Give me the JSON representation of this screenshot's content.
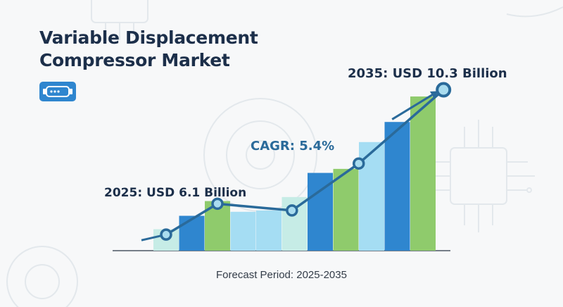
{
  "title_lines": [
    "Variable Displacement",
    "Compressor Market"
  ],
  "footer": "Forecast Period: 2025-2035",
  "icon": "compressor-icon",
  "colors": {
    "title": "#1c2f4a",
    "trend_line": "#2a6a9a",
    "marker_fill": "#a9dcef",
    "bar_light_teal": "#c6ece6",
    "bar_blue": "#2f86cf",
    "bar_green": "#8fcb6c",
    "bar_light_blue": "#a5ddf3",
    "icon_bg": "#2f86cf"
  },
  "chart_data": {
    "type": "bar",
    "title": "",
    "xlabel": "",
    "ylabel": "",
    "bars": [
      {
        "value": 1.6,
        "color": "#c6ece6"
      },
      {
        "value": 2.6,
        "color": "#2f86cf"
      },
      {
        "value": 3.7,
        "color": "#8fcb6c"
      },
      {
        "value": 2.9,
        "color": "#a5ddf3"
      },
      {
        "value": 3.0,
        "color": "#a5ddf3"
      },
      {
        "value": 4.0,
        "color": "#c6ece6"
      },
      {
        "value": 5.8,
        "color": "#2f86cf"
      },
      {
        "value": 6.1,
        "color": "#8fcb6c"
      },
      {
        "value": 8.1,
        "color": "#a5ddf3"
      },
      {
        "value": 9.6,
        "color": "#2f86cf"
      },
      {
        "value": 11.5,
        "color": "#8fcb6c"
      }
    ],
    "trend_line": {
      "points": [
        {
          "x": 0,
          "y": 1.2,
          "marker": true
        },
        {
          "x": 2,
          "y": 3.5,
          "marker": true
        },
        {
          "x": 4.9,
          "y": 3.0,
          "marker": true
        },
        {
          "x": 7.5,
          "y": 6.5,
          "marker": true
        },
        {
          "x": 10.8,
          "y": 12.0,
          "marker": true
        }
      ]
    },
    "arrow": {
      "from": {
        "x": 8.8,
        "y": 9.8
      },
      "to": {
        "x": 10.6,
        "y": 11.9
      }
    },
    "annotations": {
      "start": "2025: USD 6.1 Billion",
      "end": "2035: USD 10.3 Billion",
      "cagr": "CAGR: 5.4%"
    },
    "ylim": [
      0,
      12.5
    ],
    "grid": false,
    "legend": "none"
  }
}
